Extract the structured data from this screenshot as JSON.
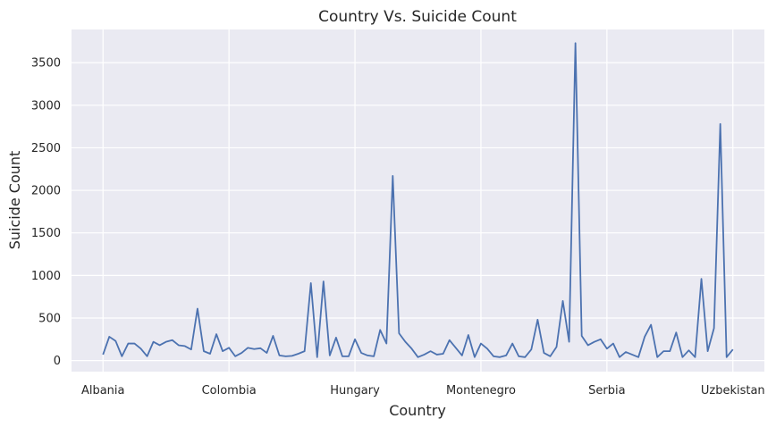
{
  "chart_data": {
    "type": "line",
    "title": "Country Vs. Suicide Count",
    "xlabel": "Country",
    "ylabel": "Suicide Count",
    "x_tick_labels": [
      "Albania",
      "Colombia",
      "Hungary",
      "Montenegro",
      "Serbia",
      "Uzbekistan"
    ],
    "x_tick_positions": [
      0,
      20,
      40,
      60,
      80,
      100
    ],
    "y_ticks": [
      0,
      500,
      1000,
      1500,
      2000,
      2500,
      3000,
      3500
    ],
    "ylim": [
      -130,
      3890
    ],
    "xlim": [
      -5,
      105
    ],
    "grid": true,
    "line_color": "#4c72b0",
    "background_color": "#eaeaf2",
    "series": [
      {
        "values": [
          70,
          280,
          230,
          50,
          200,
          200,
          140,
          50,
          220,
          180,
          220,
          240,
          180,
          170,
          130,
          610,
          110,
          80,
          310,
          110,
          150,
          50,
          90,
          150,
          135,
          145,
          90,
          290,
          60,
          50,
          55,
          80,
          110,
          910,
          40,
          930,
          60,
          270,
          50,
          50,
          250,
          90,
          60,
          50,
          360,
          200,
          2170,
          320,
          220,
          140,
          40,
          70,
          110,
          70,
          80,
          240,
          150,
          60,
          300,
          40,
          200,
          140,
          50,
          40,
          60,
          200,
          50,
          40,
          130,
          480,
          90,
          50,
          160,
          700,
          220,
          3730,
          290,
          180,
          220,
          250,
          140,
          200,
          40,
          100,
          70,
          40,
          280,
          420,
          40,
          110,
          110,
          330,
          40,
          120,
          40,
          960,
          110,
          380,
          2780,
          40,
          130
        ]
      }
    ]
  }
}
